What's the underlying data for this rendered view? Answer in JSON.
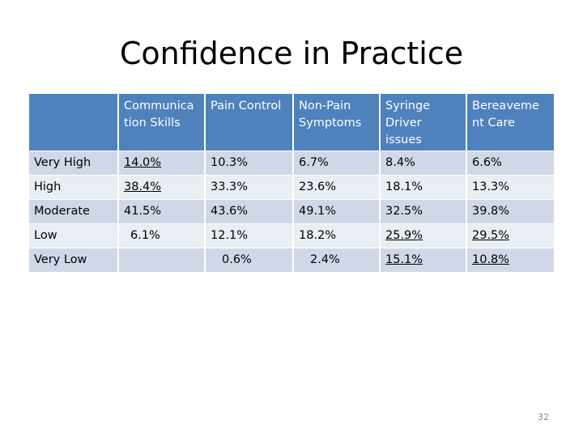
{
  "title": "Confidence in Practice",
  "table": {
    "headers": [
      "",
      "Communica tion Skills",
      "Pain Control",
      "Non-Pain Symptoms",
      "Syringe Driver issues",
      "Bereaveme nt Care"
    ],
    "rows": [
      {
        "label": "Very High",
        "cells": [
          "14.0%",
          "10.3%",
          "6.7%",
          "8.4%",
          "6.6%"
        ]
      },
      {
        "label": "High",
        "cells": [
          "38.4%",
          "33.3%",
          "23.6%",
          "18.1%",
          "13.3%"
        ]
      },
      {
        "label": "Moderate",
        "cells": [
          "41.5%",
          "43.6%",
          "49.1%",
          "32.5%",
          "39.8%"
        ]
      },
      {
        "label": "Low",
        "cells": [
          "6.1%",
          "12.1%",
          "18.2%",
          "25.9%",
          "29.5%"
        ]
      },
      {
        "label": "Very Low",
        "cells": [
          "",
          "0.6%",
          "2.4%",
          "15.1%",
          "10.8%"
        ]
      }
    ]
  },
  "page_number": "32",
  "colors": {
    "header_bg": "#4f81bd",
    "row_dark": "#d0d8e8",
    "row_light": "#e9edf4"
  }
}
